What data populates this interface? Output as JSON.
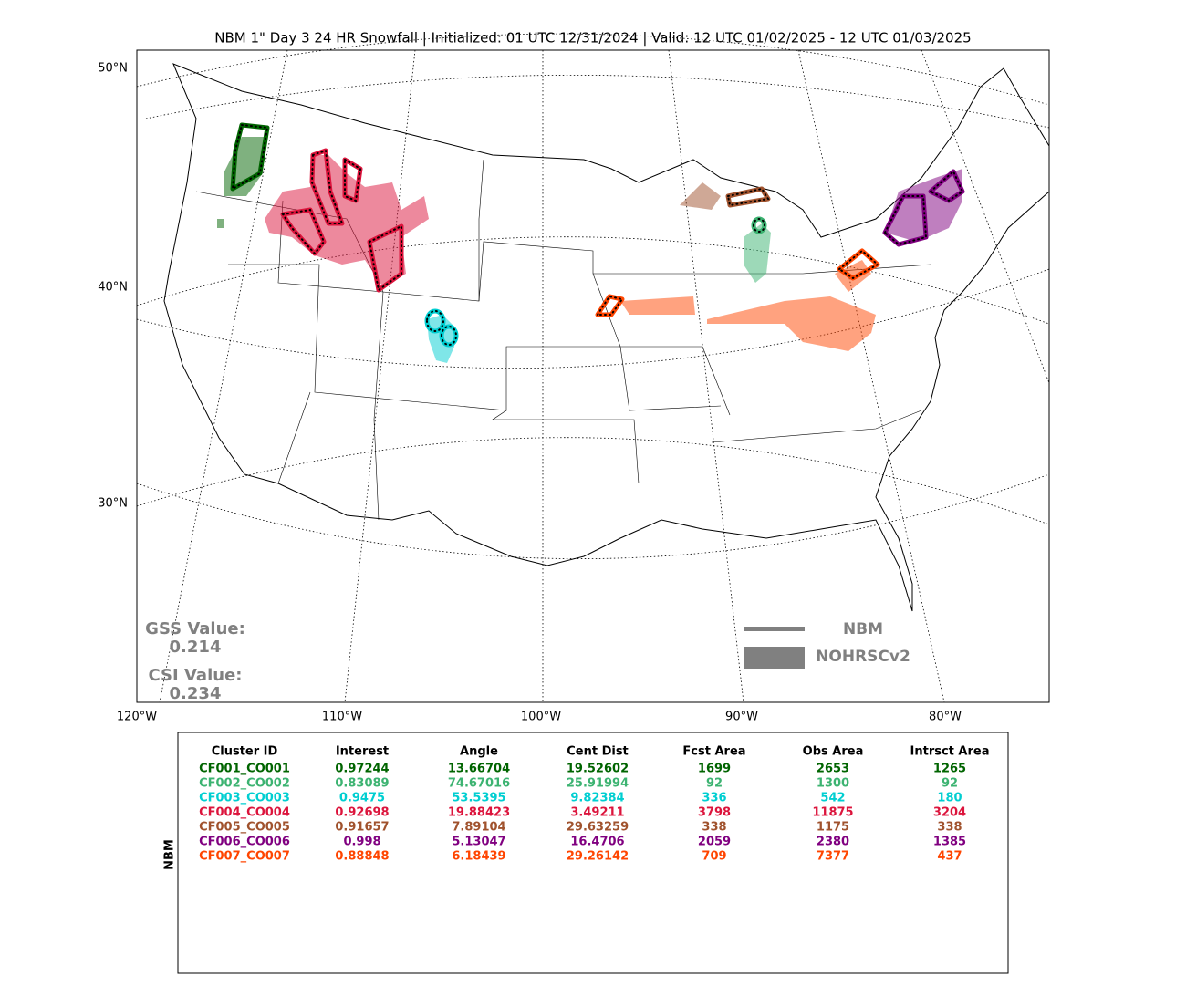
{
  "title": "NBM 1\" Day 3 24 HR Snowfall | Initialized: 01 UTC 12/31/2024 | Valid: 12 UTC 01/02/2025 - 12 UTC 01/03/2025",
  "map": {
    "lat_labels": [
      "50°N",
      "40°N",
      "30°N"
    ],
    "lon_labels": [
      "120°W",
      "110°W",
      "100°W",
      "90°W",
      "80°W"
    ],
    "scores": {
      "gss_label": "GSS Value:",
      "gss": "0.214",
      "csi_label": "CSI Value:",
      "csi": "0.234"
    },
    "legend": {
      "forecast": "NBM",
      "observed": "NOHRSCv2"
    }
  },
  "table": {
    "side_label": "NBM",
    "columns": [
      "Cluster ID",
      "Interest",
      "Angle",
      "Cent Dist",
      "Fcst Area",
      "Obs Area",
      "Intrsct Area"
    ],
    "row_colors": [
      "#006400",
      "#3cb371",
      "#00ced1",
      "#dc143c",
      "#a0522d",
      "#800080",
      "#ff4500"
    ],
    "rows": [
      [
        "CF001_CO001",
        "0.97244",
        "13.66704",
        "19.52602",
        "1699",
        "2653",
        "1265"
      ],
      [
        "CF002_CO002",
        "0.83089",
        "74.67016",
        "25.91994",
        "92",
        "1300",
        "92"
      ],
      [
        "CF003_CO003",
        "0.9475",
        "53.5395",
        "9.82384",
        "336",
        "542",
        "180"
      ],
      [
        "CF004_CO004",
        "0.92698",
        "19.88423",
        "3.49211",
        "3798",
        "11875",
        "3204"
      ],
      [
        "CF005_CO005",
        "0.91657",
        "7.89104",
        "29.63259",
        "338",
        "1175",
        "338"
      ],
      [
        "CF006_CO006",
        "0.998",
        "5.13047",
        "16.4706",
        "2059",
        "2380",
        "1385"
      ],
      [
        "CF007_CO007",
        "0.88848",
        "6.18439",
        "29.26142",
        "709",
        "7377",
        "437"
      ]
    ]
  }
}
